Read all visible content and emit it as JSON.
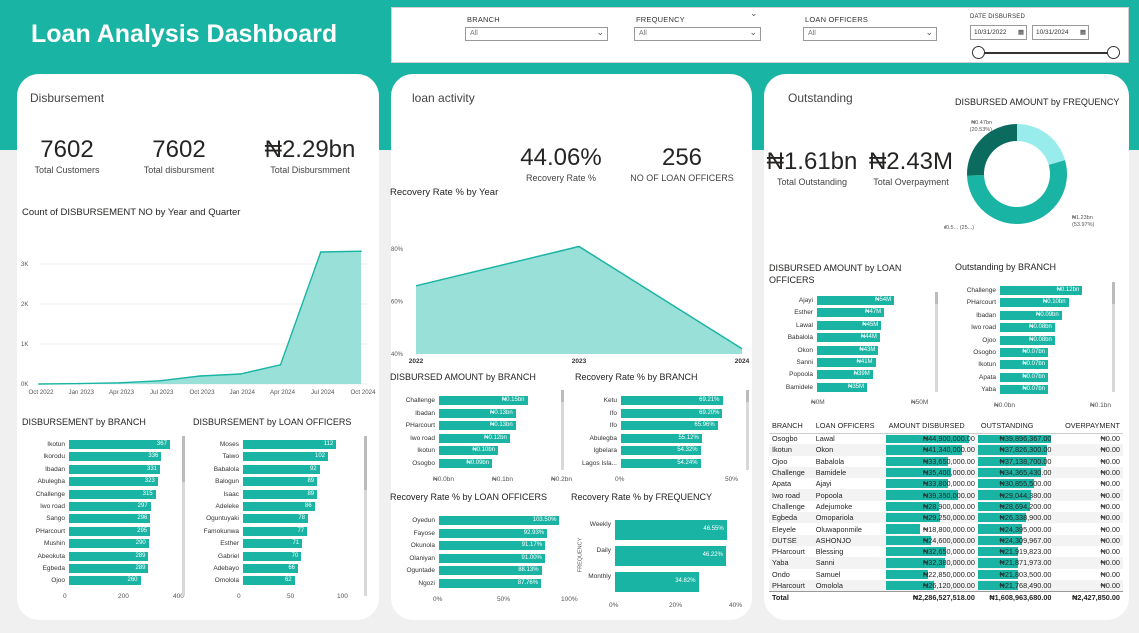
{
  "header": {
    "title": "Loan Analysis Dashboard"
  },
  "slicers": {
    "branch": {
      "label": "BRANCH",
      "value": "All"
    },
    "frequency": {
      "label": "FREQUENCY",
      "value": "All"
    },
    "officers": {
      "label": "LOAN OFFICERS",
      "value": "All"
    },
    "date": {
      "label": "DATE DISBURSED",
      "start": "10/31/2022",
      "end": "10/31/2024",
      "calendar_icon": "calendar-icon"
    }
  },
  "disbursement": {
    "title": "Disbursement",
    "kpis": [
      {
        "value": "7602",
        "label": "Total Customers"
      },
      {
        "value": "7602",
        "label": "Total disbursment"
      },
      {
        "value": "₦2.29bn",
        "label": "Total Disbursmment"
      }
    ],
    "count_chart": {
      "title": "Count of DISBURSEMENT NO by Year and Quarter",
      "y_ticks": [
        "3K",
        "2K",
        "1K",
        "0K"
      ],
      "x_ticks": [
        "Oct 2022",
        "Jan 2023",
        "Apr 2023",
        "Jul 2023",
        "Oct 2023",
        "Jan 2024",
        "Apr 2024",
        "Jul 2024",
        "Oct 2024"
      ]
    },
    "by_branch": {
      "title": "DISBURSEMENT by BRANCH",
      "x_ticks": [
        "0",
        "200",
        "400"
      ]
    },
    "by_officer": {
      "title": "DISBURSEMENT by LOAN OFFICERS",
      "x_ticks": [
        "0",
        "50",
        "100"
      ]
    }
  },
  "activity": {
    "title": "loan activity",
    "kpis": [
      {
        "value": "44.06%",
        "label": "Recovery Rate %"
      },
      {
        "value": "256",
        "label": "NO OF  LOAN OFFICERS"
      }
    ],
    "recovery_year": {
      "title": "Recovery Rate % by Year",
      "y_ticks": [
        "80%",
        "60%",
        "40%"
      ],
      "x_ticks": [
        "2022",
        "2023",
        "2024"
      ]
    },
    "amount_branch": {
      "title": "DISBURSED AMOUNT by BRANCH",
      "x_ticks": [
        "₦0.0bn",
        "₦0.1bn",
        "₦0.2bn"
      ]
    },
    "recovery_branch": {
      "title": "Recovery Rate % by BRANCH",
      "x_ticks": [
        "0%",
        "50%"
      ]
    },
    "recovery_officer": {
      "title": "Recovery Rate % by LOAN OFFICERS",
      "x_ticks": [
        "0%",
        "50%",
        "100%"
      ]
    },
    "recovery_freq": {
      "title": "Recovery Rate % by FREQUENCY",
      "y_axis_title": "FREQUENCY",
      "x_ticks": [
        "0%",
        "20%",
        "40%"
      ]
    }
  },
  "outstanding": {
    "title": "Outstanding",
    "kpis": [
      {
        "value": "₦1.61bn",
        "label": "Total Outstanding"
      },
      {
        "value": "₦2.43M",
        "label": "Total Overpayment"
      }
    ],
    "donut": {
      "title": "DISBURSED AMOUNT by FREQUENCY",
      "labels": [
        {
          "line1": "₦0.47bn",
          "line2": "(20.53%)"
        },
        {
          "line1": "₦1.23bn",
          "line2": "(53.97%)"
        },
        {
          "line1": "₦0.5... (25...)",
          "line2": ""
        }
      ]
    },
    "amount_officers": {
      "title": "DISBURSED AMOUNT by LOAN OFFICERS",
      "x_ticks": [
        "₦0M",
        "₦50M"
      ]
    },
    "outstanding_branch": {
      "title": "Outstanding by BRANCH",
      "x_ticks": [
        "₦0.0bn",
        "₦0.1bn"
      ]
    },
    "table": {
      "headers": [
        "BRANCH",
        "LOAN OFFICERS",
        "AMOUNT DISBURSED",
        "OUTSTANDING",
        "OVERPAYMENT"
      ],
      "rows": [
        [
          "Osogbo",
          "Lawal",
          "₦44,900,000.00",
          "₦39,896,367.00",
          "₦0.00"
        ],
        [
          "Ikotun",
          "Okon",
          "₦41,340,000.00",
          "₦37,826,300.00",
          "₦0.00"
        ],
        [
          "Ojoo",
          "Babalola",
          "₦33,650,000.00",
          "₦37,138,700.00",
          "₦0.00"
        ],
        [
          "Challenge",
          "Bamidele",
          "₦35,400,000.00",
          "₦34,365,430.00",
          "₦0.00"
        ],
        [
          "Apata",
          "Ajayi",
          "₦33,800,000.00",
          "₦30,855,500.00",
          "₦0.00"
        ],
        [
          "Iwo road",
          "Popoola",
          "₦39,350,000.00",
          "₦29,044,380.00",
          "₦0.00"
        ],
        [
          "Challenge",
          "Adejumoke",
          "₦28,900,000.00",
          "₦28,694,200.00",
          "₦0.00"
        ],
        [
          "Egbeda",
          "Omopariola",
          "₦29,250,000.00",
          "₦26,338,900.00",
          "₦0.00"
        ],
        [
          "Eleyele",
          "Oluwaponmile",
          "₦18,800,000.00",
          "₦24,395,000.00",
          "₦0.00"
        ],
        [
          "DUTSE",
          "ASHONJO",
          "₦24,600,000.00",
          "₦24,309,967.00",
          "₦0.00"
        ],
        [
          "PHarcourt",
          "Blessing",
          "₦32,650,000.00",
          "₦21,919,823.00",
          "₦0.00"
        ],
        [
          "Yaba",
          "Sanni",
          "₦32,380,000.00",
          "₦21,871,973.00",
          "₦0.00"
        ],
        [
          "Ondo",
          "Samuel",
          "₦22,850,000.00",
          "₦21,803,500.00",
          "₦0.00"
        ],
        [
          "PHarcourt",
          "Omolola",
          "₦26,120,000.00",
          "₦21,768,490.00",
          "₦0.00"
        ]
      ],
      "total": [
        "Total",
        "",
        "₦2,286,527,518.00",
        "₦1,608,963,680.00",
        "₦2,427,850.00"
      ]
    }
  },
  "colors": {
    "accent": "#1ab4a4",
    "dark": "#0c6b5f",
    "light": "#99ecec"
  },
  "chart_data": [
    {
      "type": "area",
      "title": "Count of DISBURSEMENT NO by Year and Quarter",
      "categories": [
        "Oct 2022",
        "Jan 2023",
        "Apr 2023",
        "Jul 2023",
        "Oct 2023",
        "Jan 2024",
        "Apr 2024",
        "Jul 2024",
        "Oct 2024"
      ],
      "values": [
        0,
        10,
        30,
        80,
        200,
        250,
        480,
        3300,
        3320
      ],
      "ylim": [
        0,
        3500
      ]
    },
    {
      "type": "area",
      "title": "Recovery Rate % by Year",
      "categories": [
        "2022",
        "2023",
        "2024"
      ],
      "values": [
        66,
        81,
        42
      ],
      "ylim": [
        40,
        85
      ]
    },
    {
      "type": "bar",
      "title": "DISBURSEMENT by BRANCH",
      "categories": [
        "Ikotun",
        "Ikorodu",
        "Ibadan",
        "Abulegba",
        "Challenge",
        "Iwo road",
        "Sango",
        "PHarcourt",
        "Mushin",
        "Abeokuta",
        "Egbeda",
        "Ojoo"
      ],
      "values": [
        367,
        336,
        331,
        323,
        315,
        297,
        296,
        295,
        290,
        289,
        289,
        260
      ],
      "xlim": [
        0,
        400
      ]
    },
    {
      "type": "bar",
      "title": "DISBURSEMENT by LOAN OFFICERS",
      "categories": [
        "Moses",
        "Taiwo",
        "Babalola",
        "Balogun",
        "Isaac",
        "Adeleke",
        "Oguntuyaki",
        "Famokunwa",
        "Esther",
        "Gabriel",
        "Adebayo",
        "Omolola"
      ],
      "values": [
        112,
        102,
        92,
        89,
        89,
        86,
        78,
        77,
        71,
        70,
        66,
        62
      ],
      "xlim": [
        0,
        120
      ]
    },
    {
      "type": "bar",
      "title": "DISBURSED AMOUNT by BRANCH",
      "categories": [
        "Challenge",
        "Ibadan",
        "PHarcourt",
        "Iwo road",
        "Ikotun",
        "Osogbo"
      ],
      "labels": [
        "₦0.15bn",
        "₦0.13bn",
        "₦0.13bn",
        "₦0.12bn",
        "₦0.10bn",
        "₦0.09bn"
      ],
      "values": [
        0.15,
        0.13,
        0.13,
        0.12,
        0.1,
        0.09
      ],
      "xlim": [
        0,
        0.2
      ]
    },
    {
      "type": "bar",
      "title": "Recovery Rate % by BRANCH",
      "categories": [
        "Ketu",
        "Ifo",
        "Ifo",
        "Abulegba",
        "Igbelara",
        "Lagos Isla..."
      ],
      "labels": [
        "69.21%",
        "69.20%",
        "65.96%",
        "55.12%",
        "54.32%",
        "54.24%"
      ],
      "values": [
        69.21,
        69.2,
        65.96,
        55.12,
        54.32,
        54.24
      ],
      "xlim": [
        0,
        75
      ]
    },
    {
      "type": "bar",
      "title": "Recovery Rate % by LOAN OFFICERS",
      "categories": [
        "Oyedun",
        "Fayose",
        "Okunola",
        "Olaniyan",
        "Oguntade",
        "Ngozi"
      ],
      "labels": [
        "103.50%",
        "92.93%",
        "91.17%",
        "91.00%",
        "88.13%",
        "87.76%"
      ],
      "values": [
        103.5,
        92.93,
        91.17,
        91.0,
        88.13,
        87.76
      ],
      "xlim": [
        0,
        110
      ]
    },
    {
      "type": "bar",
      "title": "Recovery Rate % by FREQUENCY",
      "categories": [
        "Weekly",
        "Daily",
        "Monthly"
      ],
      "labels": [
        "46.55%",
        "46.22%",
        "34.82%"
      ],
      "values": [
        46.55,
        46.22,
        34.82
      ],
      "xlim": [
        0,
        50
      ]
    },
    {
      "type": "pie",
      "title": "DISBURSED AMOUNT by FREQUENCY",
      "categories": [
        "Monthly",
        "Weekly",
        "Daily"
      ],
      "values": [
        20.53,
        53.97,
        25.5
      ]
    },
    {
      "type": "bar",
      "title": "DISBURSED AMOUNT by LOAN OFFICERS",
      "categories": [
        "Ajayi",
        "Esther",
        "Lawal",
        "Babalola",
        "Okon",
        "Sanni",
        "Popoola",
        "Bamidele"
      ],
      "labels": [
        "₦54M",
        "₦47M",
        "₦45M",
        "₦44M",
        "₦43M",
        "₦41M",
        "₦39M",
        "₦35M"
      ],
      "values": [
        54,
        47,
        45,
        44,
        43,
        41,
        39,
        35
      ],
      "xlim": [
        0,
        70
      ]
    },
    {
      "type": "bar",
      "title": "Outstanding by BRANCH",
      "categories": [
        "Challenge",
        "PHarcourt",
        "Ibadan",
        "Iwo road",
        "Ojoo",
        "Osogbo",
        "Ikotun",
        "Apata",
        "Yaba"
      ],
      "labels": [
        "₦0.12bn",
        "₦0.10bn",
        "₦0.09bn",
        "₦0.08bn",
        "₦0.08bn",
        "₦0.07bn",
        "₦0.07bn",
        "₦0.07bn",
        "₦0.07bn"
      ],
      "values": [
        0.12,
        0.1,
        0.09,
        0.08,
        0.08,
        0.07,
        0.07,
        0.07,
        0.07
      ],
      "xlim": [
        0,
        0.14
      ]
    }
  ]
}
